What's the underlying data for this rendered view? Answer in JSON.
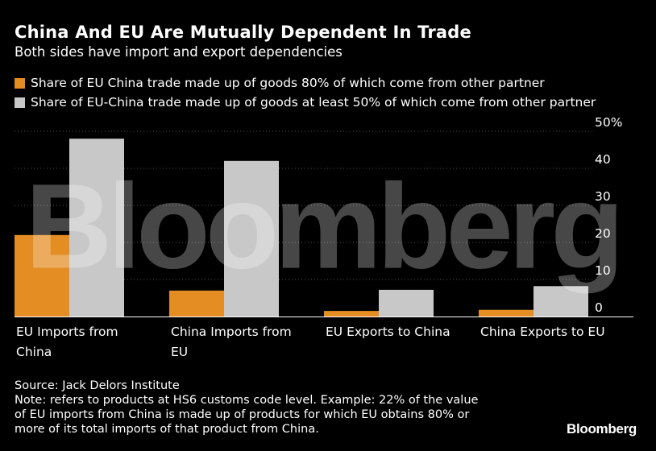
{
  "header": {
    "title": "China And EU Are Mutually Dependent In Trade",
    "subtitle": "Both sides have import and export dependencies"
  },
  "colors": {
    "background": "#000000",
    "series_80": "#e38d22",
    "series_50": "#c8c8c8",
    "grid": "#555555",
    "axis": "#ffffff"
  },
  "chart_data": {
    "type": "bar",
    "categories": [
      [
        "EU Imports from",
        "China"
      ],
      [
        "China Imports from",
        "EU"
      ],
      [
        "EU Exports to China"
      ],
      [
        "China Exports to EU"
      ]
    ],
    "series": [
      {
        "name": "Share of EU China trade made up of goods 80% of which come from other partner",
        "color": "#e38d22",
        "values": [
          22,
          7,
          1.5,
          1.8
        ]
      },
      {
        "name": "Share of EU-China trade made up of goods at least 50% of which come from other partner",
        "color": "#c8c8c8",
        "values": [
          48,
          42,
          7.2,
          8.2
        ]
      }
    ],
    "ylim": [
      0,
      50
    ],
    "yticks": [
      {
        "value": 50,
        "label": "50%"
      },
      {
        "value": 40,
        "label": "40"
      },
      {
        "value": 30,
        "label": "30"
      },
      {
        "value": 20,
        "label": "20"
      },
      {
        "value": 10,
        "label": "10"
      },
      {
        "value": 0,
        "label": "0"
      }
    ],
    "grid": true,
    "legend": "top-left",
    "y_axis_side": "right",
    "watermark": "Bloomberg"
  },
  "footer": {
    "source": "Source: Jack Delors Institute",
    "note_lines": [
      "Note: refers to products at HS6 customs code level. Example: 22% of the value",
      "of EU imports from China is made up of products for which EU obtains 80% or",
      "more of its total imports of that product from China."
    ],
    "brand": "Bloomberg"
  }
}
